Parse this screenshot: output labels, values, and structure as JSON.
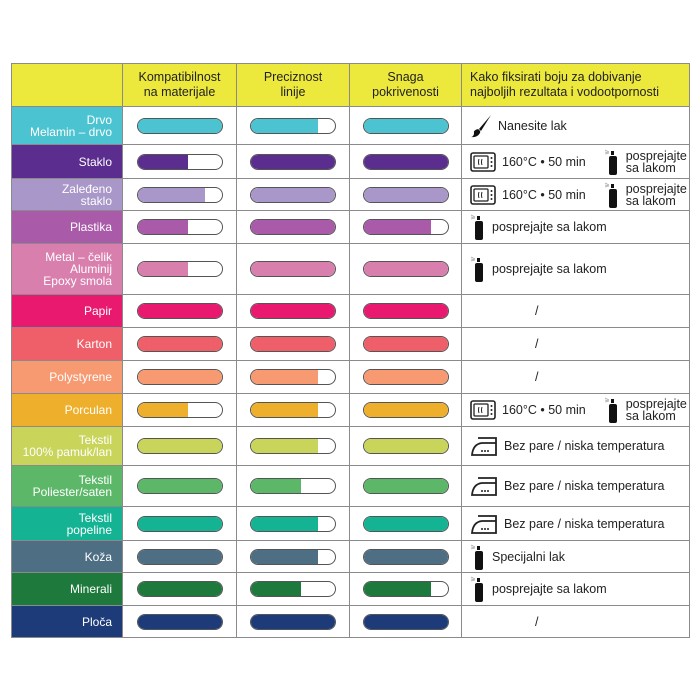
{
  "header": {
    "col1": "Kompatibilnost na materijale",
    "col1a": "Kompatibilnost",
    "col1b": "na materijale",
    "col2a": "Preciznost",
    "col2b": "linije",
    "col3a": "Snaga",
    "col3b": "pokrivenosti",
    "col4a": "Kako fiksirati boju za dobivanje",
    "col4b": "najboljih rezultata i vodootpornosti"
  },
  "colors": {
    "header": "#ede93c"
  },
  "rows": [
    {
      "label": [
        "Drvo",
        "Melamin – drvo"
      ],
      "color": "#4cc3d0",
      "levels": [
        1,
        0.8,
        1
      ],
      "fix": {
        "type": "brush",
        "text": "Nanesite lak"
      },
      "h": 38
    },
    {
      "label": [
        "Staklo"
      ],
      "color": "#5b2d8e",
      "levels": [
        0.6,
        1,
        1
      ],
      "fix": {
        "type": "oven-spray",
        "text": "160°C • 50 min",
        "spray": [
          "posprejajte",
          "sa lakom"
        ]
      },
      "h": 34
    },
    {
      "label": [
        "Zaleđeno",
        "staklo"
      ],
      "color": "#a897c8",
      "levels": [
        0.8,
        1,
        1
      ],
      "fix": {
        "type": "oven-spray",
        "text": "160°C • 50 min",
        "spray": [
          "posprejajte",
          "sa lakom"
        ]
      },
      "h": 32
    },
    {
      "label": [
        "Plastika"
      ],
      "color": "#a95aa8",
      "levels": [
        0.6,
        1,
        0.8
      ],
      "fix": {
        "type": "spray",
        "text": "posprejajte sa lakom"
      },
      "h": 33
    },
    {
      "label": [
        "Metal – čelik",
        "Aluminij",
        "Epoxy smola"
      ],
      "color": "#d97fae",
      "levels": [
        0.6,
        1,
        1
      ],
      "fix": {
        "type": "spray",
        "text": "posprejajte sa lakom"
      },
      "h": 51
    },
    {
      "label": [
        "Papir"
      ],
      "color": "#e8196e",
      "levels": [
        1,
        1,
        1
      ],
      "fix": {
        "type": "none",
        "text": "/"
      },
      "h": 33
    },
    {
      "label": [
        "Karton"
      ],
      "color": "#ee5f6a",
      "levels": [
        1,
        1,
        1
      ],
      "fix": {
        "type": "none",
        "text": "/"
      },
      "h": 33
    },
    {
      "label": [
        "Polystyrene"
      ],
      "color": "#f79a72",
      "levels": [
        1,
        0.8,
        1
      ],
      "fix": {
        "type": "none",
        "text": "/"
      },
      "h": 33
    },
    {
      "label": [
        "Porculan"
      ],
      "color": "#eeb02c",
      "levels": [
        0.6,
        0.8,
        1
      ],
      "fix": {
        "type": "oven-spray",
        "text": "160°C • 50 min",
        "spray": [
          "posprejajte",
          "sa lakom"
        ]
      },
      "h": 33
    },
    {
      "label": [
        "Tekstil",
        "100% pamuk/lan"
      ],
      "color": "#c8d45a",
      "levels": [
        1,
        0.8,
        1
      ],
      "fix": {
        "type": "iron",
        "text": "Bez pare / niska temperatura"
      },
      "h": 39
    },
    {
      "label": [
        "Tekstil",
        "Poliester/saten"
      ],
      "color": "#5cb868",
      "levels": [
        1,
        0.6,
        1
      ],
      "fix": {
        "type": "iron",
        "text": "Bez pare / niska temperatura"
      },
      "h": 41
    },
    {
      "label": [
        "Tekstil",
        "popeline"
      ],
      "color": "#14b394",
      "levels": [
        1,
        0.8,
        1
      ],
      "fix": {
        "type": "iron",
        "text": "Bez pare / niska temperatura"
      },
      "h": 34
    },
    {
      "label": [
        "Koža"
      ],
      "color": "#4e6e84",
      "levels": [
        1,
        0.8,
        1
      ],
      "fix": {
        "type": "spray",
        "text": "Specijalni lak"
      },
      "h": 32
    },
    {
      "label": [
        "Minerali"
      ],
      "color": "#1e7a3c",
      "levels": [
        1,
        0.6,
        0.8
      ],
      "fix": {
        "type": "spray",
        "text": "posprejajte sa lakom"
      },
      "h": 33
    },
    {
      "label": [
        "Ploča"
      ],
      "color": "#1d3b78",
      "levels": [
        1,
        1,
        1
      ],
      "fix": {
        "type": "none",
        "text": "/"
      },
      "h": 32
    }
  ]
}
